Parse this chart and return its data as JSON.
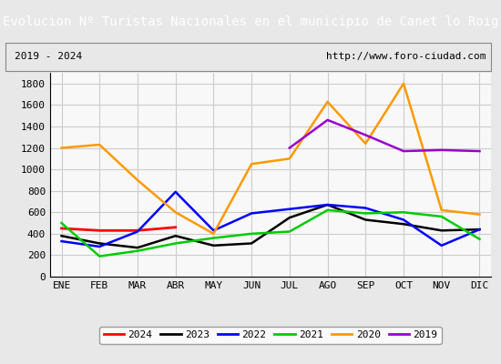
{
  "title": "Evolucion Nº Turistas Nacionales en el municipio de Canet lo Roig",
  "subtitle_left": "2019 - 2024",
  "subtitle_right": "http://www.foro-ciudad.com",
  "title_bg_color": "#4a90d9",
  "title_text_color": "#ffffff",
  "subtitle_bg_color": "#ffffff",
  "subtitle_border_color": "#aaaaaa",
  "months": [
    "ENE",
    "FEB",
    "MAR",
    "ABR",
    "MAY",
    "JUN",
    "JUL",
    "AGO",
    "SEP",
    "OCT",
    "NOV",
    "DIC"
  ],
  "series": {
    "2024": {
      "color": "#ff0000",
      "values": [
        450,
        430,
        430,
        460,
        null,
        null,
        null,
        null,
        null,
        null,
        null,
        null
      ]
    },
    "2023": {
      "color": "#000000",
      "values": [
        380,
        310,
        270,
        380,
        290,
        310,
        550,
        670,
        530,
        490,
        430,
        440
      ]
    },
    "2022": {
      "color": "#0000ff",
      "values": [
        330,
        280,
        420,
        790,
        430,
        590,
        630,
        670,
        640,
        530,
        290,
        440
      ]
    },
    "2021": {
      "color": "#00cc00",
      "values": [
        500,
        190,
        240,
        310,
        360,
        400,
        420,
        620,
        590,
        600,
        560,
        350
      ]
    },
    "2020": {
      "color": "#ff9900",
      "values": [
        1200,
        1230,
        900,
        600,
        400,
        1050,
        1100,
        1630,
        1240,
        1800,
        620,
        580
      ]
    },
    "2019": {
      "color": "#9900cc",
      "values": [
        null,
        null,
        null,
        null,
        null,
        null,
        1200,
        1460,
        1320,
        1170,
        1180,
        1170
      ]
    }
  },
  "ylim": [
    0,
    1900
  ],
  "yticks": [
    0,
    200,
    400,
    600,
    800,
    1000,
    1200,
    1400,
    1600,
    1800
  ],
  "bg_color": "#f0f0f0",
  "plot_bg_color": "#f8f8f8",
  "grid_color": "#cccccc",
  "legend_order": [
    "2024",
    "2023",
    "2022",
    "2021",
    "2020",
    "2019"
  ]
}
